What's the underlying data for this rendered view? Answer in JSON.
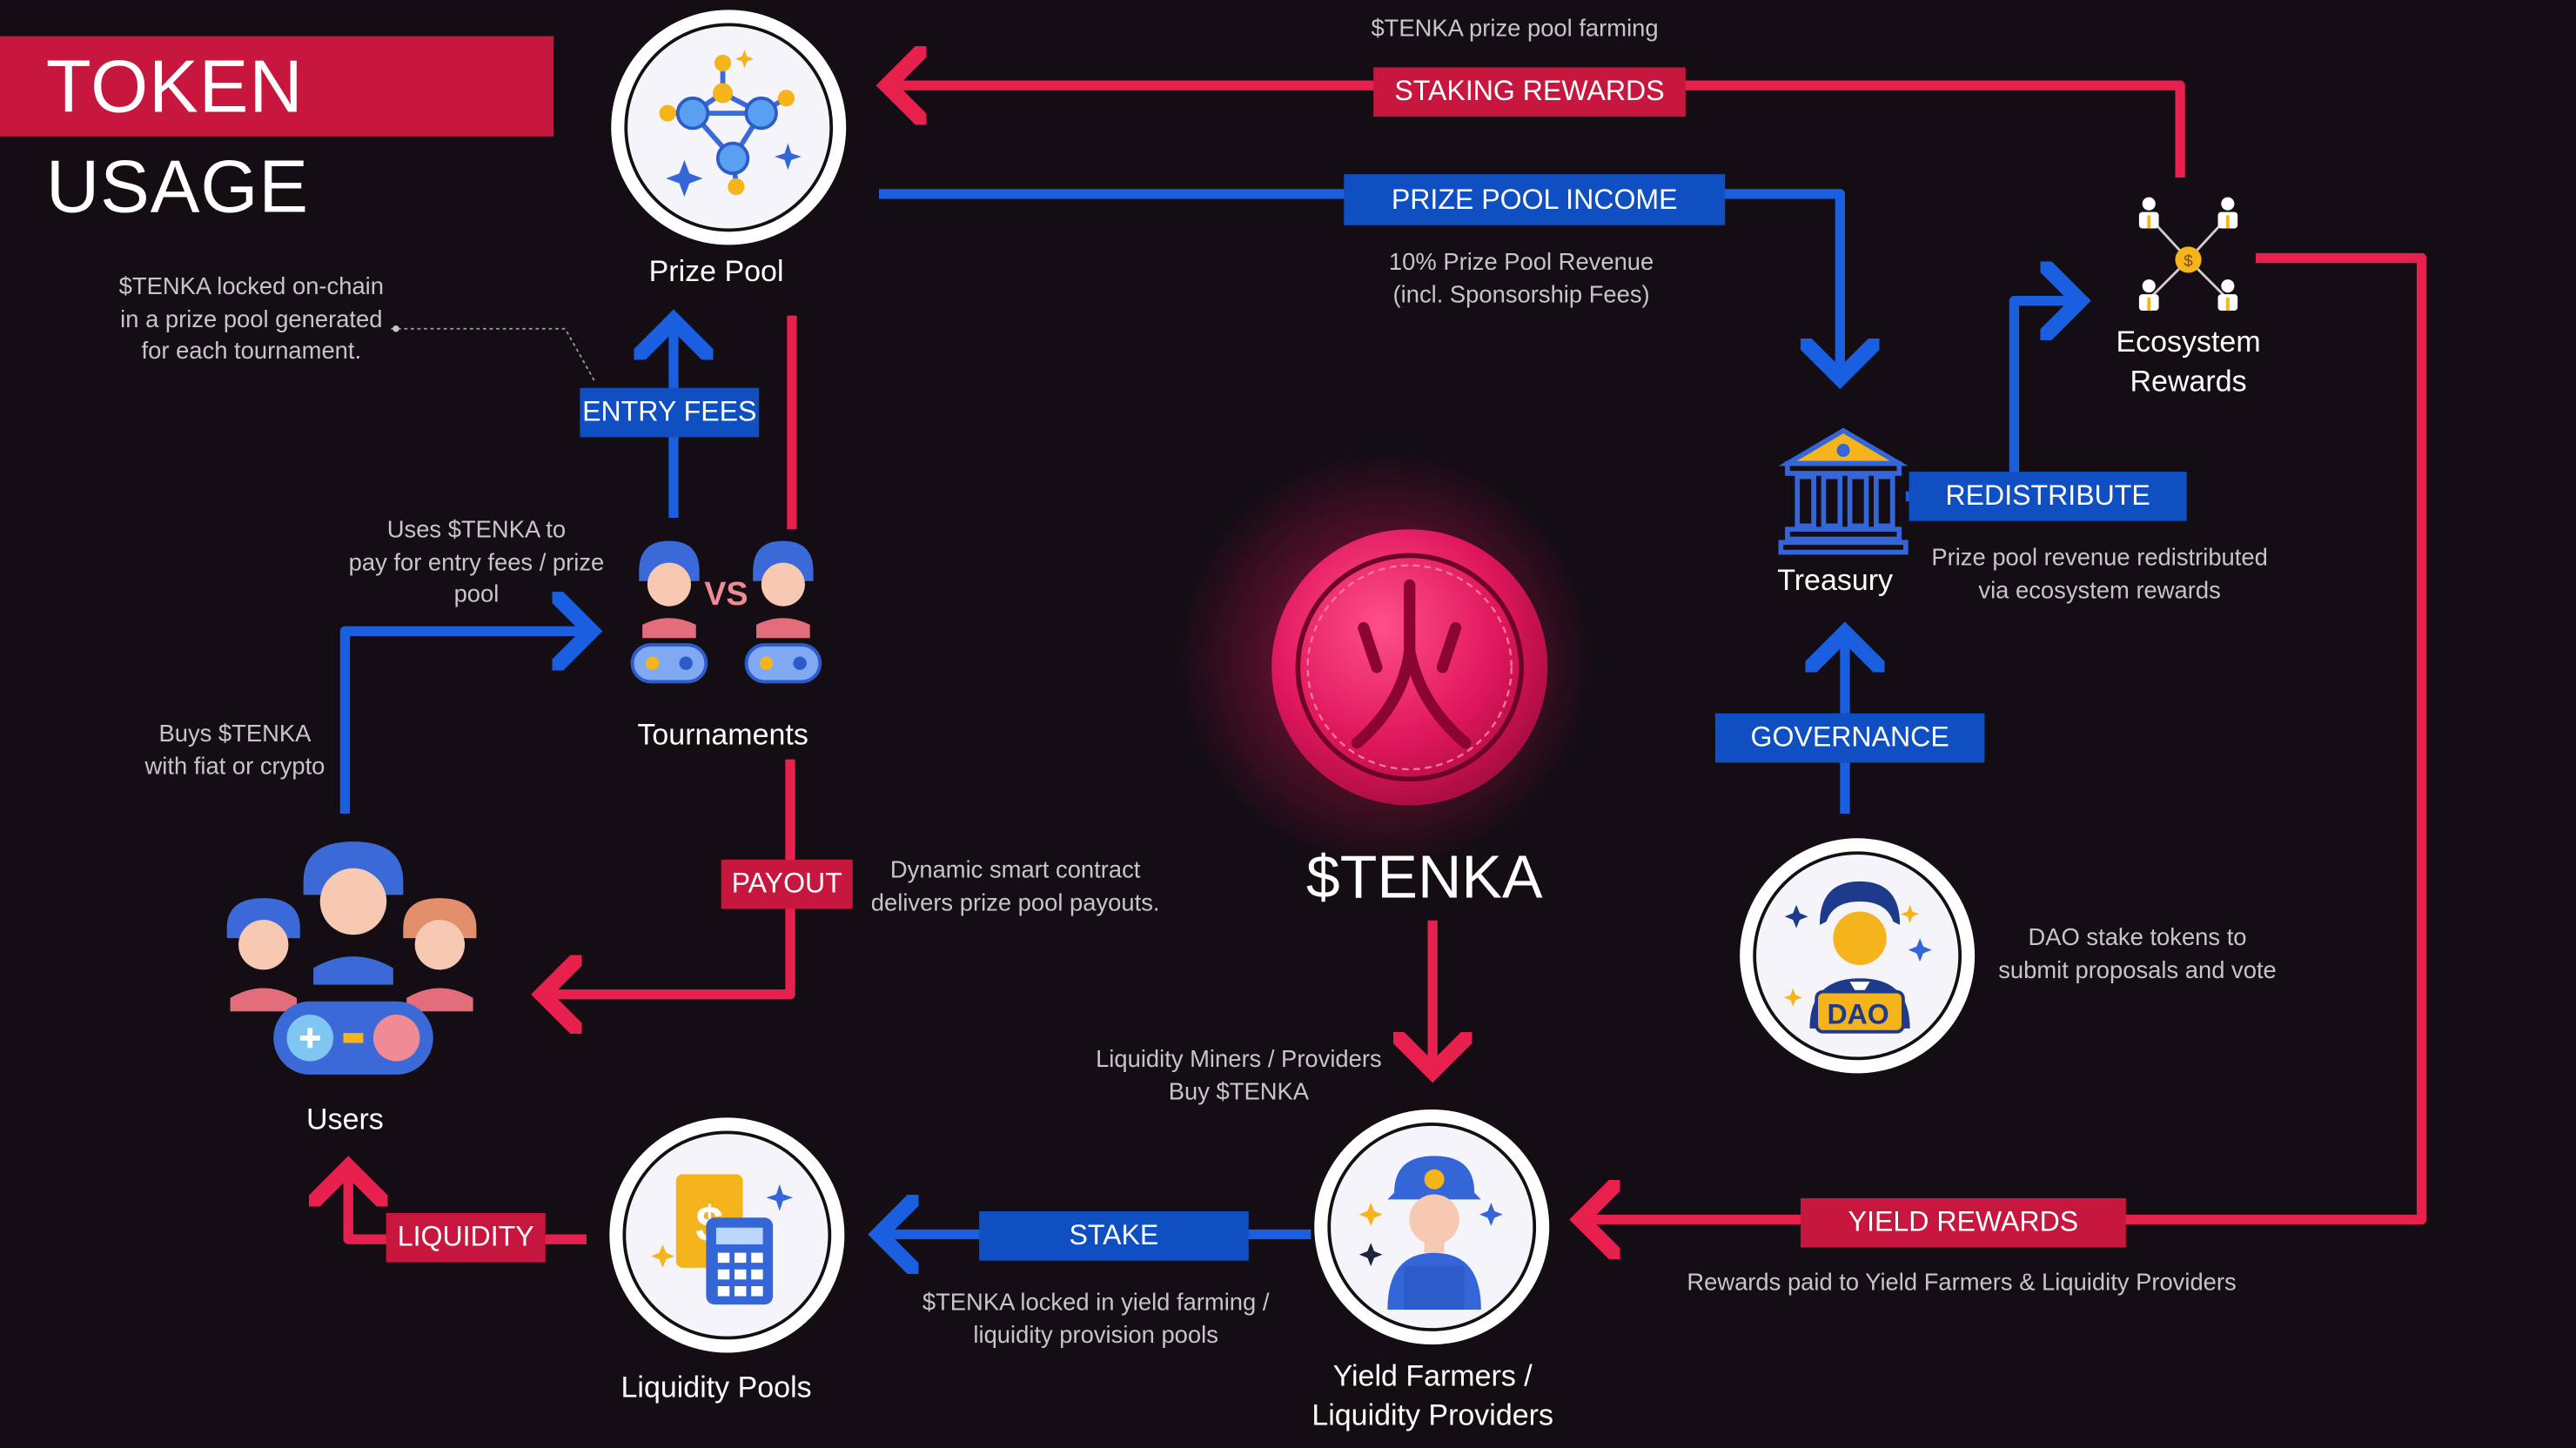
{
  "title": "TOKEN USAGE",
  "nodes": {
    "prize_pool": "Prize Pool",
    "tournaments": "Tournaments",
    "users": "Users",
    "liquidity_pools": "Liquidity Pools",
    "yield_farmers": "Yield Farmers /\nLiquidity Providers",
    "treasury": "Treasury",
    "ecosystem_rewards": "Ecosystem\nRewards",
    "center_token": "$TENKA",
    "vs": "VS",
    "dao": "DAO"
  },
  "tags": {
    "staking_rewards": "STAKING REWARDS",
    "prize_pool_income": "PRIZE POOL INCOME",
    "entry_fees": "ENTRY FEES",
    "payout": "PAYOUT",
    "redistribute": "REDISTRIBUTE",
    "governance": "GOVERNANCE",
    "liquidity": "LIQUIDITY",
    "stake": "STAKE",
    "yield_rewards": "YIELD REWARDS"
  },
  "notes": {
    "prize_pool_farming": "$TENKA prize pool farming",
    "prize_pool_revenue": "10% Prize Pool Revenue\n(incl. Sponsorship Fees)",
    "locked_onchain": "$TENKA locked on-chain\nin a prize pool generated\nfor each tournament.",
    "uses_tenka": "Uses $TENKA to\npay for entry fees / prize\npool",
    "buys_tenka": "Buys $TENKA\nwith fiat or crypto",
    "dynamic_contract": "Dynamic smart contract\ndelivers prize pool payouts.",
    "redistributed": "Prize pool revenue redistributed\nvia ecosystem rewards",
    "dao_stake": "DAO stake tokens to\nsubmit proposals and vote",
    "miners_buy": "Liquidity Miners / Providers\nBuy $TENKA",
    "locked_yield": "$TENKA locked in yield farming /\nliquidity provision pools",
    "rewards_paid": "Rewards paid to Yield Farmers & Liquidity Providers"
  },
  "colors": {
    "red": "#c8173f",
    "blue": "#0f4fc1",
    "background": "#150d14"
  }
}
